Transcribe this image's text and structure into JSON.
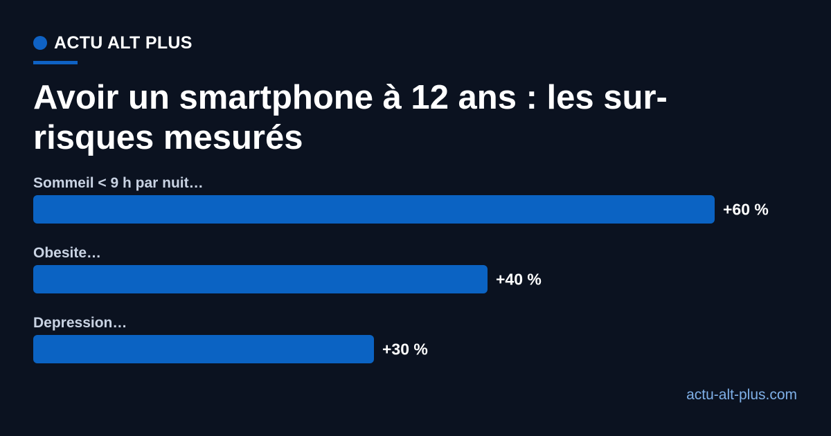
{
  "brand": {
    "name": "ACTU ALT PLUS",
    "accent_color": "#0f62c4"
  },
  "title": "Avoir un smartphone à 12 ans : les sur-risques mesurés",
  "source": "actu-alt-plus.com",
  "chart_data": {
    "type": "bar",
    "orientation": "horizontal",
    "title": "Avoir un smartphone à 12 ans : les sur-risques mesurés",
    "categories": [
      "Sommeil < 9 h par nuit…",
      "Obesite…",
      "Depression…"
    ],
    "values": [
      60,
      40,
      30
    ],
    "value_labels": [
      "+60 %",
      "+40 %",
      "+30 %"
    ],
    "unit": "%",
    "xlim": [
      0,
      60
    ],
    "bar_color": "#0b63c3",
    "grid": false,
    "legend": "none"
  }
}
